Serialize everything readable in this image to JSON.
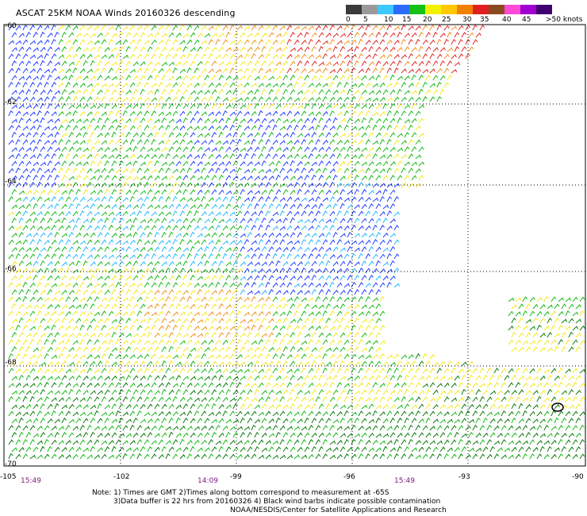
{
  "title": "ASCAT 25KM NOAA Winds 20160326 descending",
  "colorbar": {
    "labels": [
      "0",
      "5",
      "10",
      "15",
      "20",
      "25",
      "30",
      "35",
      "40",
      "45",
      ">50 knots"
    ],
    "colors": [
      "#3a3a3a",
      "#9a9a9a",
      "#3fc7ff",
      "#2a6cff",
      "#16c016",
      "#f2f200",
      "#ffc800",
      "#f08000",
      "#e02020",
      "#8a4a20",
      "#ff4ad8",
      "#a000d0",
      "#400070"
    ]
  },
  "lat_labels": [
    "-60",
    "-62",
    "-64",
    "-66",
    "-68",
    "-70"
  ],
  "lon_labels": [
    "-105",
    "-102",
    "-99",
    "-96",
    "-93",
    "-90"
  ],
  "time_labels": [
    "15:49",
    "14:09",
    "15:49"
  ],
  "notes": {
    "line1": "Note: 1) Times are GMT 2)Times along bottom correspond to measurement at -65S",
    "line2": "3)Data buffer is 22 hrs from 20160326 4) Black wind barbs indicate possible contamination",
    "line3": "NOAA/NESDIS/Center for Satellite Applications and Research"
  },
  "wind_colors": {
    "blue": "#1e3cff",
    "lightblue": "#22b8ff",
    "green": "#14b814",
    "darkgreen": "#0a7a0a",
    "yellow": "#f4e81a",
    "orange": "#f09018",
    "red": "#e02424",
    "black": "#000000"
  }
}
